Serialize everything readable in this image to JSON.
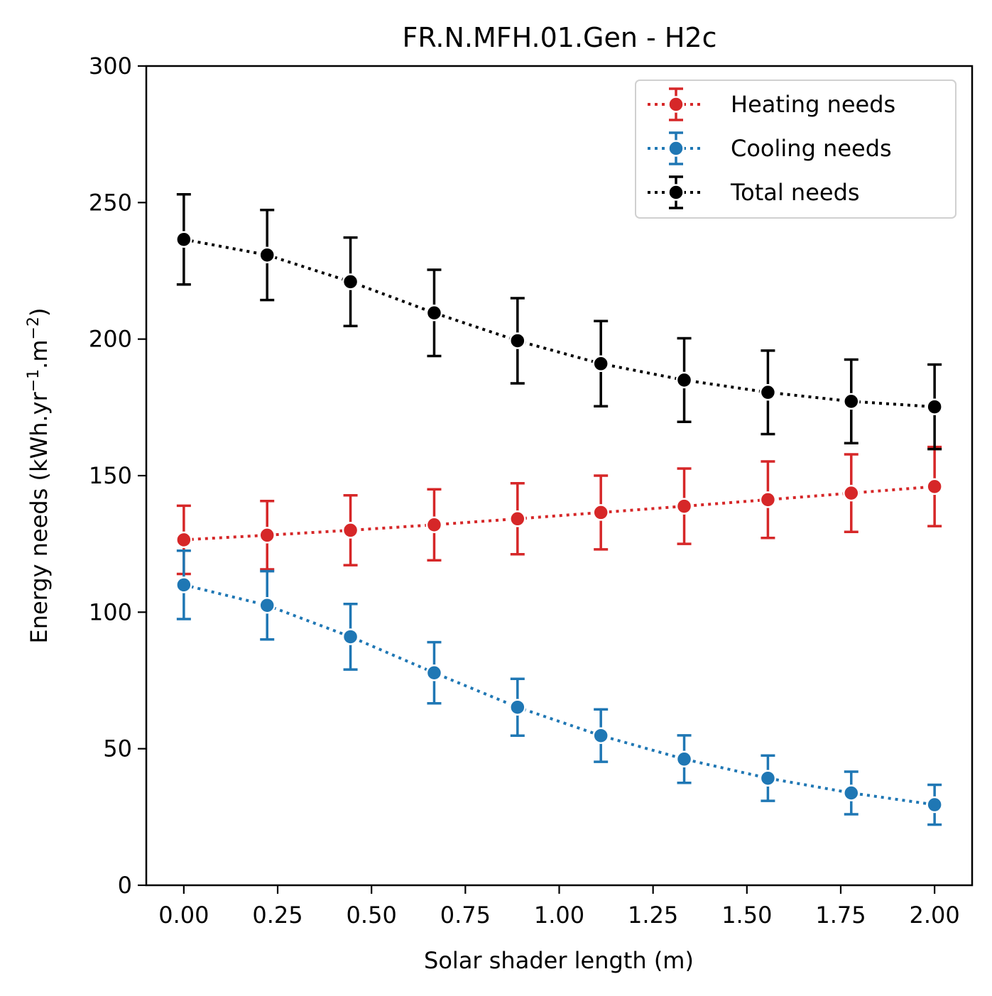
{
  "chart_data": {
    "type": "line",
    "title": "FR.N.MFH.01.Gen - H2c",
    "xlabel": "Solar shader length (m)",
    "ylabel_main": "Energy needs (kWh.yr",
    "ylabel_sup1": "−1",
    "ylabel_mid": ".m",
    "ylabel_sup2": "−2",
    "ylabel_end": ")",
    "xlim": [
      -0.1,
      2.1
    ],
    "ylim": [
      0,
      300
    ],
    "xticks": [
      "0.00",
      "0.25",
      "0.50",
      "0.75",
      "1.00",
      "1.25",
      "1.50",
      "1.75",
      "2.00"
    ],
    "yticks": [
      "0",
      "50",
      "100",
      "150",
      "200",
      "250",
      "300"
    ],
    "x": [
      0.0,
      0.222,
      0.444,
      0.667,
      0.889,
      1.111,
      1.333,
      1.556,
      1.778,
      2.0
    ],
    "legend_position": "top-right",
    "grid": false,
    "series": [
      {
        "name": "Heating needs",
        "color": "#d62728",
        "values": [
          126.5,
          128.2,
          130.0,
          132.0,
          134.2,
          136.5,
          138.8,
          141.2,
          143.6,
          146.0
        ],
        "err": [
          12.5,
          12.5,
          12.8,
          13.0,
          13.0,
          13.5,
          13.8,
          14.0,
          14.2,
          14.5
        ]
      },
      {
        "name": "Cooling needs",
        "color": "#1f77b4",
        "values": [
          110.0,
          102.5,
          91.0,
          77.8,
          65.2,
          54.8,
          46.2,
          39.2,
          33.8,
          29.5
        ],
        "err": [
          12.5,
          12.5,
          12.0,
          11.2,
          10.4,
          9.6,
          8.7,
          8.3,
          7.8,
          7.3
        ]
      },
      {
        "name": "Total needs",
        "color": "#000000",
        "values": [
          236.5,
          230.8,
          221.0,
          209.6,
          199.4,
          191.0,
          185.0,
          180.5,
          177.2,
          175.2
        ],
        "err": [
          16.5,
          16.5,
          16.2,
          15.8,
          15.6,
          15.6,
          15.3,
          15.3,
          15.3,
          15.5
        ]
      }
    ]
  }
}
